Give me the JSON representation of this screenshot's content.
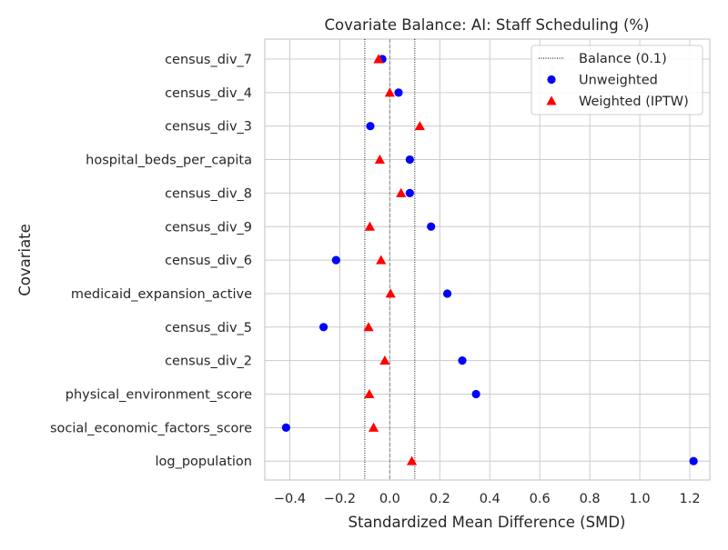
{
  "chart_data": {
    "type": "scatter",
    "title": "Covariate Balance: AI: Staff Scheduling (%)",
    "xlabel": "Standardized Mean Difference (SMD)",
    "ylabel": "Covariate",
    "xlim": [
      -0.5,
      1.28
    ],
    "xticks": [
      -0.4,
      -0.2,
      0.0,
      0.2,
      0.4,
      0.6,
      0.8,
      1.0,
      1.2
    ],
    "xtick_labels": [
      "−0.4",
      "−0.2",
      "0.0",
      "0.2",
      "0.4",
      "0.6",
      "0.8",
      "1.0",
      "1.2"
    ],
    "grid": true,
    "legend_position": "top-right",
    "balance_threshold": 0.1,
    "categories": [
      "census_div_7",
      "census_div_4",
      "census_div_3",
      "hospital_beds_per_capita",
      "census_div_8",
      "census_div_9",
      "census_div_6",
      "medicaid_expansion_active",
      "census_div_5",
      "census_div_2",
      "physical_environment_score",
      "social_economic_factors_score",
      "log_population"
    ],
    "series": [
      {
        "name": "Unweighted",
        "marker": "circle",
        "color": "#0000ff",
        "values": [
          -0.03,
          0.035,
          -0.078,
          0.08,
          0.08,
          0.165,
          -0.215,
          0.23,
          -0.265,
          0.29,
          0.345,
          -0.415,
          1.215
        ]
      },
      {
        "name": "Weighted (IPTW)",
        "marker": "triangle",
        "color": "#ff0000",
        "values": [
          -0.045,
          0.0,
          0.12,
          -0.04,
          0.045,
          -0.08,
          -0.035,
          0.003,
          -0.085,
          -0.02,
          -0.082,
          -0.065,
          0.088
        ]
      }
    ],
    "legend": [
      {
        "label": "Balance (0.1)",
        "style": "dotted-line"
      },
      {
        "label": "Unweighted",
        "style": "circle"
      },
      {
        "label": "Weighted (IPTW)",
        "style": "triangle"
      }
    ]
  }
}
